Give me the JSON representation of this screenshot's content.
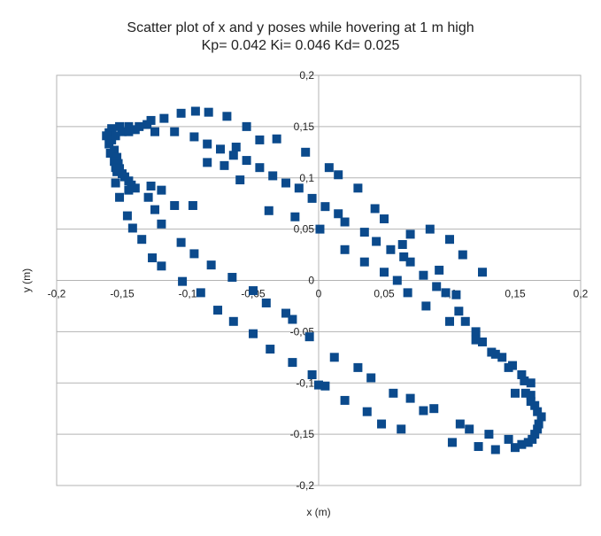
{
  "chart_data": {
    "type": "scatter",
    "title": "Scatter plot of x and y poses while hovering at 1 m high",
    "subtitle": "Kp= 0.042  Ki= 0.046  Kd= 0.025",
    "xlabel": "x (m)",
    "ylabel": "y (m)",
    "xlim": [
      -0.2,
      0.2
    ],
    "ylim": [
      -0.2,
      0.2
    ],
    "x_ticks": [
      -0.2,
      -0.15,
      -0.1,
      -0.05,
      0,
      0.05,
      0.1,
      0.15,
      0.2
    ],
    "y_ticks": [
      -0.2,
      -0.15,
      -0.1,
      -0.05,
      0,
      0.05,
      0.1,
      0.15,
      0.2
    ],
    "x_tick_labels": [
      "-0,2",
      "-0,15",
      "-0,1",
      "-0,05",
      "0",
      "0,05",
      "0,1",
      "0,15",
      "0,2"
    ],
    "y_tick_labels": [
      "-0,2",
      "-0,15",
      "-0,1",
      "-0,05",
      "0",
      "0,05",
      "0,1",
      "0,15",
      "0,2"
    ],
    "grid": "horizontal",
    "marker_color": "#0b4a8c",
    "points": [
      [
        -0.094,
        0.165
      ],
      [
        -0.084,
        0.164
      ],
      [
        -0.105,
        0.163
      ],
      [
        -0.07,
        0.16
      ],
      [
        -0.118,
        0.158
      ],
      [
        -0.128,
        0.156
      ],
      [
        -0.131,
        0.152
      ],
      [
        -0.137,
        0.15
      ],
      [
        -0.145,
        0.15
      ],
      [
        -0.152,
        0.15
      ],
      [
        -0.158,
        0.148
      ],
      [
        -0.16,
        0.144
      ],
      [
        -0.162,
        0.141
      ],
      [
        -0.158,
        0.137
      ],
      [
        -0.16,
        0.133
      ],
      [
        -0.156,
        0.127
      ],
      [
        -0.159,
        0.124
      ],
      [
        -0.154,
        0.12
      ],
      [
        -0.156,
        0.116
      ],
      [
        -0.153,
        0.114
      ],
      [
        -0.155,
        0.11
      ],
      [
        -0.152,
        0.109
      ],
      [
        -0.154,
        0.106
      ],
      [
        -0.15,
        0.104
      ],
      [
        -0.155,
        0.095
      ],
      [
        -0.148,
        0.101
      ],
      [
        -0.145,
        0.097
      ],
      [
        -0.143,
        0.093
      ],
      [
        -0.14,
        0.09
      ],
      [
        -0.128,
        0.092
      ],
      [
        -0.12,
        0.088
      ],
      [
        -0.13,
        0.081
      ],
      [
        -0.152,
        0.081
      ],
      [
        -0.145,
        0.088
      ],
      [
        -0.125,
        0.069
      ],
      [
        -0.11,
        0.073
      ],
      [
        -0.096,
        0.073
      ],
      [
        -0.146,
        0.063
      ],
      [
        -0.12,
        0.055
      ],
      [
        -0.142,
        0.051
      ],
      [
        -0.135,
        0.04
      ],
      [
        -0.105,
        0.037
      ],
      [
        -0.127,
        0.022
      ],
      [
        -0.095,
        0.026
      ],
      [
        -0.082,
        0.015
      ],
      [
        -0.12,
        0.014
      ],
      [
        -0.066,
        0.003
      ],
      [
        -0.104,
        -0.001
      ],
      [
        -0.05,
        -0.01
      ],
      [
        -0.09,
        -0.012
      ],
      [
        -0.04,
        -0.022
      ],
      [
        -0.077,
        -0.029
      ],
      [
        -0.025,
        -0.032
      ],
      [
        -0.065,
        -0.04
      ],
      [
        -0.02,
        -0.038
      ],
      [
        -0.05,
        -0.052
      ],
      [
        -0.007,
        -0.055
      ],
      [
        -0.037,
        -0.067
      ],
      [
        -0.02,
        -0.08
      ],
      [
        -0.005,
        -0.092
      ],
      [
        0.0,
        -0.102
      ],
      [
        0.005,
        -0.103
      ],
      [
        0.012,
        -0.075
      ],
      [
        0.02,
        -0.117
      ],
      [
        0.03,
        -0.085
      ],
      [
        0.04,
        -0.095
      ],
      [
        0.037,
        -0.128
      ],
      [
        0.048,
        -0.14
      ],
      [
        0.057,
        -0.11
      ],
      [
        0.063,
        -0.145
      ],
      [
        0.07,
        -0.115
      ],
      [
        0.08,
        -0.127
      ],
      [
        0.088,
        -0.125
      ],
      [
        0.102,
        -0.158
      ],
      [
        0.108,
        -0.14
      ],
      [
        0.115,
        -0.145
      ],
      [
        0.122,
        -0.162
      ],
      [
        0.13,
        -0.15
      ],
      [
        0.135,
        -0.165
      ],
      [
        0.145,
        -0.155
      ],
      [
        0.15,
        -0.163
      ],
      [
        0.155,
        -0.16
      ],
      [
        0.16,
        -0.158
      ],
      [
        0.163,
        -0.155
      ],
      [
        0.165,
        -0.15
      ],
      [
        0.167,
        -0.145
      ],
      [
        0.168,
        -0.14
      ],
      [
        0.17,
        -0.133
      ],
      [
        0.167,
        -0.128
      ],
      [
        0.165,
        -0.122
      ],
      [
        0.162,
        -0.118
      ],
      [
        0.158,
        -0.11
      ],
      [
        0.162,
        -0.1
      ],
      [
        0.15,
        -0.11
      ],
      [
        0.155,
        -0.092
      ],
      [
        0.145,
        -0.085
      ],
      [
        0.14,
        -0.075
      ],
      [
        0.132,
        -0.07
      ],
      [
        0.125,
        -0.06
      ],
      [
        0.12,
        -0.05
      ],
      [
        0.112,
        -0.04
      ],
      [
        0.107,
        -0.03
      ],
      [
        0.105,
        -0.014
      ],
      [
        0.097,
        -0.012
      ],
      [
        0.09,
        -0.006
      ],
      [
        0.08,
        0.005
      ],
      [
        0.07,
        0.018
      ],
      [
        0.065,
        0.023
      ],
      [
        0.055,
        0.03
      ],
      [
        0.044,
        0.038
      ],
      [
        0.035,
        0.047
      ],
      [
        0.02,
        0.057
      ],
      [
        0.015,
        0.065
      ],
      [
        0.005,
        0.072
      ],
      [
        -0.005,
        0.08
      ],
      [
        -0.015,
        0.09
      ],
      [
        -0.025,
        0.095
      ],
      [
        -0.035,
        0.102
      ],
      [
        -0.045,
        0.11
      ],
      [
        -0.055,
        0.117
      ],
      [
        -0.065,
        0.122
      ],
      [
        -0.075,
        0.128
      ],
      [
        -0.085,
        0.133
      ],
      [
        -0.095,
        0.14
      ],
      [
        -0.11,
        0.145
      ],
      [
        -0.125,
        0.145
      ],
      [
        -0.14,
        0.147
      ],
      [
        -0.15,
        0.145
      ],
      [
        -0.155,
        0.141
      ],
      [
        -0.145,
        0.145
      ],
      [
        -0.038,
        0.068
      ],
      [
        -0.018,
        0.062
      ],
      [
        0.001,
        0.05
      ],
      [
        0.02,
        0.03
      ],
      [
        0.035,
        0.018
      ],
      [
        0.05,
        0.008
      ],
      [
        0.06,
        0.0
      ],
      [
        0.068,
        -0.012
      ],
      [
        0.082,
        -0.025
      ],
      [
        0.1,
        -0.04
      ],
      [
        0.12,
        -0.058
      ],
      [
        0.135,
        -0.072
      ],
      [
        0.148,
        -0.083
      ],
      [
        0.157,
        -0.098
      ],
      [
        0.162,
        -0.112
      ],
      [
        0.064,
        0.035
      ],
      [
        0.07,
        0.045
      ],
      [
        0.085,
        0.05
      ],
      [
        0.092,
        0.01
      ],
      [
        0.1,
        0.04
      ],
      [
        0.125,
        0.008
      ],
      [
        0.11,
        0.025
      ],
      [
        0.05,
        0.06
      ],
      [
        0.043,
        0.07
      ],
      [
        0.03,
        0.09
      ],
      [
        0.015,
        0.103
      ],
      [
        0.008,
        0.11
      ],
      [
        -0.01,
        0.125
      ],
      [
        -0.032,
        0.138
      ],
      [
        -0.055,
        0.15
      ],
      [
        -0.045,
        0.137
      ],
      [
        -0.063,
        0.13
      ],
      [
        -0.085,
        0.115
      ],
      [
        -0.072,
        0.112
      ],
      [
        -0.06,
        0.098
      ]
    ]
  }
}
